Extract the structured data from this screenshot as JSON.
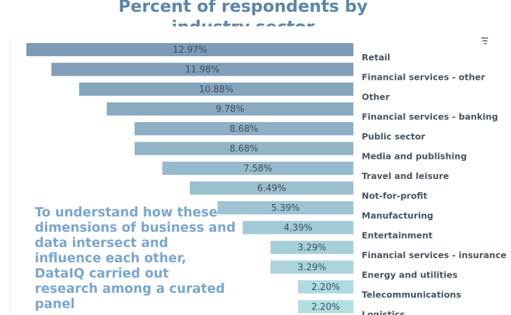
{
  "page_title": "Percent of respondents by industry sector",
  "overlay_text": "To understand how these dimensions of business and data intersect and influence each other, DataIQ carried out research among a curated panel",
  "icons": {
    "sort": "sort-descending-icon"
  },
  "chart_data": {
    "type": "bar",
    "orientation": "horizontal",
    "title": "Percent of respondents by industry sector",
    "categories": [
      "Retail",
      "Financial services - other",
      "Other",
      "Financial services - banking",
      "Public sector",
      "Media and publishing",
      "Travel and leisure",
      "Not-for-profit",
      "Manufacturing",
      "Entertainment",
      "Financial services - insurance",
      "Energy and utilities",
      "Telecommunications",
      "Logistics"
    ],
    "values": [
      12.97,
      11.98,
      10.88,
      9.78,
      8.68,
      8.68,
      7.58,
      6.49,
      5.39,
      4.39,
      3.29,
      3.29,
      2.2,
      2.2
    ],
    "labels": [
      "12.97%",
      "11.98%",
      "10.88%",
      "9.78%",
      "8.68%",
      "8.68%",
      "7.58%",
      "6.49%",
      "5.39%",
      "4.39%",
      "3.29%",
      "3.29%",
      "2.20%",
      "2.20%"
    ],
    "unit": "%",
    "color_scale": [
      "#7d9ab6",
      "#b3dfe3"
    ],
    "bar_direction": "right-aligned, extending left",
    "category_axis": "right",
    "legend": "none",
    "grid": false
  }
}
